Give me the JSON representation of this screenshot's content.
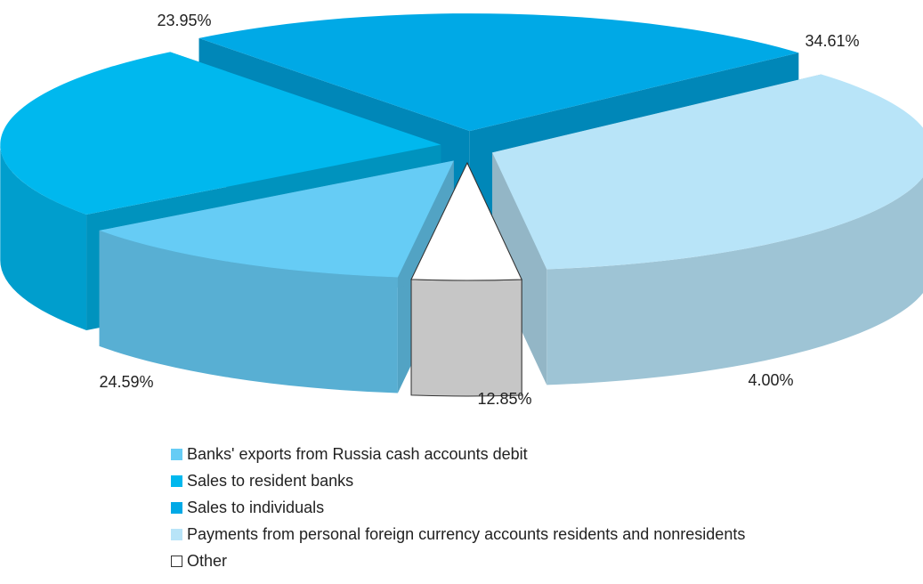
{
  "chart_data": {
    "type": "pie",
    "style": "3d-exploded",
    "slices": [
      {
        "label": "Banks' exports from Russia cash accounts debit",
        "value": 12.85,
        "display": "12.85%",
        "color": "#66ccf5"
      },
      {
        "label": "Sales to resident banks",
        "value": 24.59,
        "display": "24.59%",
        "color": "#00b8ee"
      },
      {
        "label": "Sales to individuals",
        "value": 23.95,
        "display": "23.95%",
        "color": "#00a9e6"
      },
      {
        "label": "Payments from personal foreign currency accounts  residents and nonresidents",
        "value": 34.61,
        "display": "34.61%",
        "color": "#b8e4f8"
      },
      {
        "label": "Other",
        "value": 4.0,
        "display": "4.00%",
        "color": "#ffffff"
      }
    ],
    "legend_position": "bottom"
  }
}
